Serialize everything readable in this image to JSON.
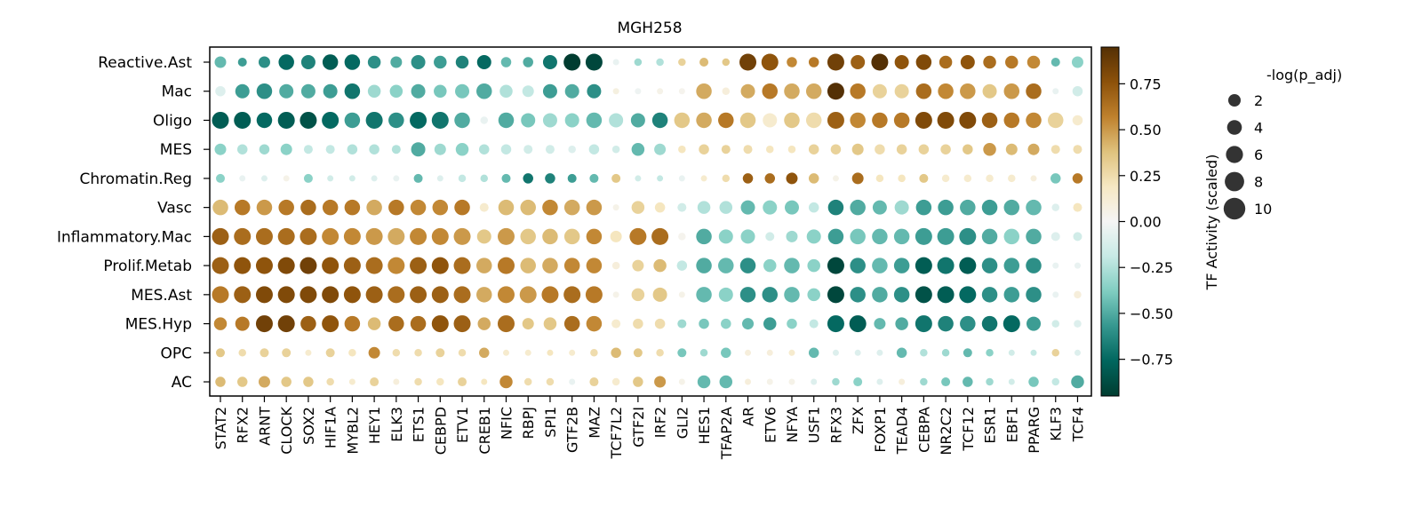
{
  "chart_data": {
    "type": "dotplot",
    "title": "MGH258",
    "rows": [
      "Reactive.Ast",
      "Mac",
      "Oligo",
      "MES",
      "Chromatin.Reg",
      "Vasc",
      "Inflammatory.Mac",
      "Prolif.Metab",
      "MES.Ast",
      "MES.Hyp",
      "OPC",
      "AC"
    ],
    "columns": [
      "STAT2",
      "RFX2",
      "ARNT",
      "CLOCK",
      "SOX2",
      "HIF1A",
      "MYBL2",
      "HEY1",
      "ELK3",
      "ETS1",
      "CEBPD",
      "ETV1",
      "CREB1",
      "NFIC",
      "RBPJ",
      "SPI1",
      "GTF2B",
      "MAZ",
      "TCF7L2",
      "GTF2I",
      "IRF2",
      "GLI2",
      "HES1",
      "TFAP2A",
      "AR",
      "ETV6",
      "NFYA",
      "USF1",
      "RFX3",
      "ZFX",
      "FOXP1",
      "TEAD4",
      "CEBPA",
      "NR2C2",
      "TCF12",
      "ESR1",
      "EBF1",
      "PPARG",
      "KLF3",
      "TCF4"
    ],
    "activity": [
      [
        -0.45,
        -0.55,
        -0.6,
        -0.75,
        -0.65,
        -0.8,
        -0.75,
        -0.6,
        -0.5,
        -0.6,
        -0.55,
        -0.65,
        -0.75,
        -0.45,
        -0.5,
        -0.7,
        -0.95,
        -0.9,
        -0.05,
        -0.3,
        -0.25,
        0.3,
        0.4,
        0.35,
        0.85,
        0.75,
        0.55,
        0.6,
        0.85,
        0.7,
        0.95,
        0.75,
        0.8,
        0.65,
        0.75,
        0.65,
        0.6,
        0.55,
        -0.45,
        -0.35
      ],
      [
        -0.1,
        -0.55,
        -0.6,
        -0.5,
        -0.5,
        -0.55,
        -0.7,
        -0.3,
        -0.35,
        -0.5,
        -0.4,
        -0.4,
        -0.5,
        -0.25,
        -0.2,
        -0.55,
        -0.5,
        -0.6,
        0.08,
        -0.03,
        0.05,
        0.03,
        0.45,
        0.1,
        0.45,
        0.6,
        0.45,
        0.45,
        0.95,
        0.6,
        0.3,
        0.3,
        0.65,
        0.55,
        0.5,
        0.35,
        0.5,
        0.65,
        -0.05,
        -0.15
      ],
      [
        -0.8,
        -0.8,
        -0.75,
        -0.8,
        -0.85,
        -0.75,
        -0.55,
        -0.7,
        -0.6,
        -0.75,
        -0.7,
        -0.5,
        -0.05,
        -0.5,
        -0.4,
        -0.3,
        -0.35,
        -0.45,
        -0.25,
        -0.5,
        -0.65,
        0.35,
        0.45,
        0.6,
        0.35,
        0.15,
        0.35,
        0.25,
        0.7,
        0.55,
        0.6,
        0.6,
        0.8,
        0.8,
        0.8,
        0.7,
        0.6,
        0.55,
        0.3,
        0.15
      ],
      [
        -0.35,
        -0.25,
        -0.3,
        -0.35,
        -0.2,
        -0.2,
        -0.25,
        -0.25,
        -0.25,
        -0.5,
        -0.3,
        -0.35,
        -0.25,
        -0.2,
        -0.15,
        -0.15,
        -0.1,
        -0.2,
        -0.15,
        -0.45,
        -0.3,
        0.2,
        0.3,
        0.3,
        0.25,
        0.2,
        0.2,
        0.3,
        0.3,
        0.35,
        0.25,
        0.3,
        0.3,
        0.3,
        0.35,
        0.5,
        0.4,
        0.45,
        0.25,
        0.25
      ],
      [
        -0.35,
        -0.05,
        -0.1,
        0.05,
        -0.35,
        -0.15,
        -0.15,
        -0.1,
        -0.05,
        -0.45,
        -0.1,
        -0.2,
        -0.25,
        -0.45,
        -0.7,
        -0.65,
        -0.55,
        -0.45,
        0.35,
        -0.15,
        -0.2,
        -0.05,
        0.15,
        0.25,
        0.7,
        0.65,
        0.75,
        0.4,
        0.05,
        0.65,
        0.2,
        0.2,
        0.35,
        0.15,
        0.15,
        0.15,
        0.15,
        0.1,
        -0.4,
        0.6
      ],
      [
        0.4,
        0.6,
        0.5,
        0.6,
        0.65,
        0.6,
        0.6,
        0.45,
        0.6,
        0.55,
        0.55,
        0.6,
        0.15,
        0.4,
        0.4,
        0.55,
        0.45,
        0.5,
        0.05,
        0.3,
        0.2,
        -0.15,
        -0.25,
        -0.25,
        -0.45,
        -0.35,
        -0.4,
        -0.2,
        -0.65,
        -0.5,
        -0.45,
        -0.3,
        -0.55,
        -0.55,
        -0.5,
        -0.55,
        -0.5,
        -0.45,
        -0.1,
        0.2
      ],
      [
        0.7,
        0.65,
        0.65,
        0.65,
        0.65,
        0.55,
        0.55,
        0.5,
        0.45,
        0.55,
        0.55,
        0.5,
        0.35,
        0.5,
        0.35,
        0.4,
        0.35,
        0.55,
        0.2,
        0.6,
        0.65,
        0.03,
        -0.5,
        -0.35,
        -0.35,
        -0.15,
        -0.3,
        -0.35,
        -0.55,
        -0.4,
        -0.45,
        -0.45,
        -0.55,
        -0.55,
        -0.6,
        -0.5,
        -0.35,
        -0.5,
        -0.1,
        -0.15
      ],
      [
        0.7,
        0.75,
        0.75,
        0.8,
        0.85,
        0.75,
        0.7,
        0.65,
        0.55,
        0.7,
        0.75,
        0.65,
        0.45,
        0.6,
        0.4,
        0.45,
        0.55,
        0.55,
        0.1,
        0.3,
        0.4,
        -0.2,
        -0.5,
        -0.45,
        -0.6,
        -0.35,
        -0.45,
        -0.35,
        -0.9,
        -0.6,
        -0.45,
        -0.55,
        -0.8,
        -0.7,
        -0.8,
        -0.6,
        -0.55,
        -0.6,
        -0.05,
        -0.05
      ],
      [
        0.6,
        0.7,
        0.8,
        0.8,
        0.8,
        0.8,
        0.75,
        0.7,
        0.65,
        0.7,
        0.7,
        0.65,
        0.45,
        0.55,
        0.5,
        0.6,
        0.65,
        0.6,
        0.05,
        0.3,
        0.35,
        0.05,
        -0.45,
        -0.35,
        -0.6,
        -0.6,
        -0.45,
        -0.35,
        -0.9,
        -0.6,
        -0.5,
        -0.6,
        -0.85,
        -0.8,
        -0.75,
        -0.6,
        -0.55,
        -0.6,
        -0.05,
        0.1
      ],
      [
        0.55,
        0.6,
        0.85,
        0.85,
        0.7,
        0.75,
        0.6,
        0.4,
        0.65,
        0.65,
        0.75,
        0.7,
        0.45,
        0.65,
        0.35,
        0.35,
        0.65,
        0.55,
        0.15,
        0.25,
        0.25,
        -0.3,
        -0.4,
        -0.35,
        -0.45,
        -0.55,
        -0.35,
        -0.2,
        -0.75,
        -0.8,
        -0.45,
        -0.5,
        -0.7,
        -0.65,
        -0.6,
        -0.7,
        -0.75,
        -0.55,
        -0.15,
        -0.1
      ],
      [
        0.35,
        0.25,
        0.3,
        0.3,
        0.15,
        0.3,
        0.2,
        0.55,
        0.25,
        0.25,
        0.3,
        0.25,
        0.45,
        0.15,
        0.15,
        0.2,
        0.15,
        0.25,
        0.4,
        0.35,
        0.25,
        -0.4,
        -0.3,
        -0.4,
        0.1,
        0.1,
        0.15,
        -0.45,
        -0.1,
        -0.1,
        -0.1,
        -0.45,
        -0.25,
        -0.3,
        -0.45,
        -0.35,
        -0.15,
        -0.2,
        0.3,
        -0.1
      ],
      [
        0.4,
        0.35,
        0.45,
        0.35,
        0.35,
        0.25,
        0.15,
        0.3,
        0.1,
        0.25,
        0.2,
        0.3,
        0.2,
        0.55,
        0.25,
        0.25,
        -0.05,
        0.3,
        0.15,
        0.35,
        0.5,
        0.05,
        -0.45,
        -0.45,
        0.1,
        0.05,
        0.05,
        -0.1,
        -0.3,
        -0.35,
        -0.1,
        0.1,
        -0.3,
        -0.4,
        -0.45,
        -0.3,
        -0.15,
        -0.4,
        -0.2,
        -0.5
      ]
    ],
    "significance": [
      [
        6,
        4,
        6,
        9,
        8,
        9,
        9,
        7,
        6,
        8,
        7,
        7,
        8,
        5,
        5,
        8,
        10,
        10,
        2,
        3,
        3,
        3,
        4,
        3,
        10,
        10,
        5,
        5,
        10,
        8,
        10,
        8,
        9,
        7,
        8,
        7,
        7,
        7,
        4,
        6
      ],
      [
        5,
        8,
        9,
        8,
        8,
        8,
        9,
        7,
        7,
        8,
        7,
        8,
        9,
        7,
        6,
        8,
        8,
        8,
        2,
        2,
        2,
        2,
        9,
        3,
        8,
        9,
        9,
        9,
        10,
        9,
        8,
        8,
        9,
        9,
        9,
        8,
        9,
        9,
        2,
        5
      ],
      [
        10,
        10,
        9,
        10,
        10,
        10,
        9,
        10,
        9,
        10,
        10,
        9,
        3,
        9,
        8,
        8,
        8,
        9,
        8,
        8,
        9,
        9,
        9,
        9,
        9,
        8,
        9,
        9,
        10,
        9,
        9,
        9,
        10,
        10,
        10,
        9,
        9,
        9,
        9,
        5
      ],
      [
        6,
        5,
        5,
        6,
        4,
        4,
        5,
        5,
        4,
        8,
        6,
        7,
        5,
        5,
        4,
        4,
        3,
        5,
        3,
        7,
        6,
        3,
        5,
        4,
        4,
        3,
        3,
        5,
        5,
        6,
        5,
        5,
        5,
        5,
        5,
        7,
        6,
        6,
        4,
        4
      ],
      [
        4,
        2,
        2,
        2,
        4,
        2,
        2,
        2,
        2,
        4,
        2,
        3,
        3,
        4,
        5,
        5,
        4,
        4,
        4,
        2,
        2,
        2,
        2,
        3,
        5,
        5,
        6,
        5,
        2,
        6,
        3,
        3,
        4,
        3,
        3,
        3,
        3,
        2,
        5,
        5
      ],
      [
        9,
        9,
        9,
        9,
        9,
        9,
        9,
        9,
        9,
        9,
        9,
        9,
        4,
        9,
        9,
        9,
        9,
        9,
        2,
        7,
        5,
        4,
        7,
        7,
        8,
        8,
        8,
        5,
        9,
        9,
        8,
        8,
        9,
        9,
        9,
        9,
        9,
        9,
        3,
        4
      ],
      [
        10,
        10,
        10,
        10,
        10,
        10,
        10,
        10,
        10,
        10,
        10,
        10,
        8,
        10,
        9,
        9,
        9,
        9,
        6,
        10,
        10,
        3,
        9,
        8,
        8,
        4,
        6,
        8,
        9,
        9,
        9,
        9,
        10,
        10,
        10,
        9,
        9,
        9,
        4,
        4
      ],
      [
        10,
        10,
        10,
        10,
        10,
        10,
        10,
        10,
        10,
        10,
        10,
        10,
        9,
        10,
        9,
        9,
        9,
        9,
        3,
        6,
        7,
        5,
        9,
        9,
        9,
        7,
        9,
        7,
        10,
        9,
        9,
        9,
        10,
        10,
        10,
        9,
        9,
        9,
        2,
        2
      ],
      [
        10,
        10,
        10,
        10,
        10,
        10,
        10,
        10,
        10,
        10,
        10,
        10,
        9,
        10,
        10,
        10,
        10,
        10,
        2,
        7,
        8,
        2,
        9,
        8,
        9,
        9,
        9,
        7,
        10,
        9,
        9,
        9,
        10,
        10,
        10,
        9,
        9,
        9,
        2,
        3
      ],
      [
        7,
        8,
        10,
        10,
        9,
        10,
        9,
        7,
        9,
        9,
        10,
        10,
        7,
        10,
        6,
        7,
        9,
        9,
        4,
        5,
        5,
        4,
        5,
        5,
        6,
        7,
        5,
        4,
        10,
        10,
        6,
        7,
        10,
        9,
        9,
        9,
        10,
        8,
        3,
        3
      ],
      [
        4,
        3,
        4,
        4,
        2,
        4,
        3,
        6,
        3,
        3,
        4,
        3,
        5,
        2,
        2,
        2,
        2,
        3,
        5,
        4,
        3,
        4,
        3,
        5,
        2,
        2,
        2,
        5,
        2,
        2,
        2,
        5,
        3,
        3,
        4,
        3,
        2,
        2,
        3,
        2
      ],
      [
        5,
        5,
        6,
        5,
        5,
        3,
        2,
        4,
        2,
        3,
        3,
        4,
        2,
        7,
        3,
        3,
        2,
        4,
        3,
        5,
        6,
        2,
        7,
        7,
        2,
        2,
        2,
        2,
        3,
        4,
        2,
        2,
        3,
        4,
        5,
        3,
        2,
        5,
        3,
        7
      ]
    ],
    "colorbar": {
      "label": "TF Activity (scaled)",
      "ticks": [
        "0.75",
        "0.50",
        "0.25",
        "0.00",
        "−0.25",
        "−0.50",
        "−0.75"
      ],
      "tick_values": [
        0.75,
        0.5,
        0.25,
        0,
        -0.25,
        -0.5,
        -0.75
      ],
      "range": [
        -0.95,
        0.95
      ],
      "colormap": "BrBG_reversed",
      "colors": [
        "#003c30",
        "#01665e",
        "#35978f",
        "#80cdc1",
        "#c7eae5",
        "#f5f5f5",
        "#f6e8c3",
        "#dfc27d",
        "#bf812d",
        "#8c510a",
        "#543005"
      ]
    },
    "size_legend": {
      "title": "-log(p_adj)",
      "entries": [
        "2",
        "4",
        "6",
        "8",
        "10"
      ],
      "values": [
        2,
        4,
        6,
        8,
        10
      ]
    }
  }
}
